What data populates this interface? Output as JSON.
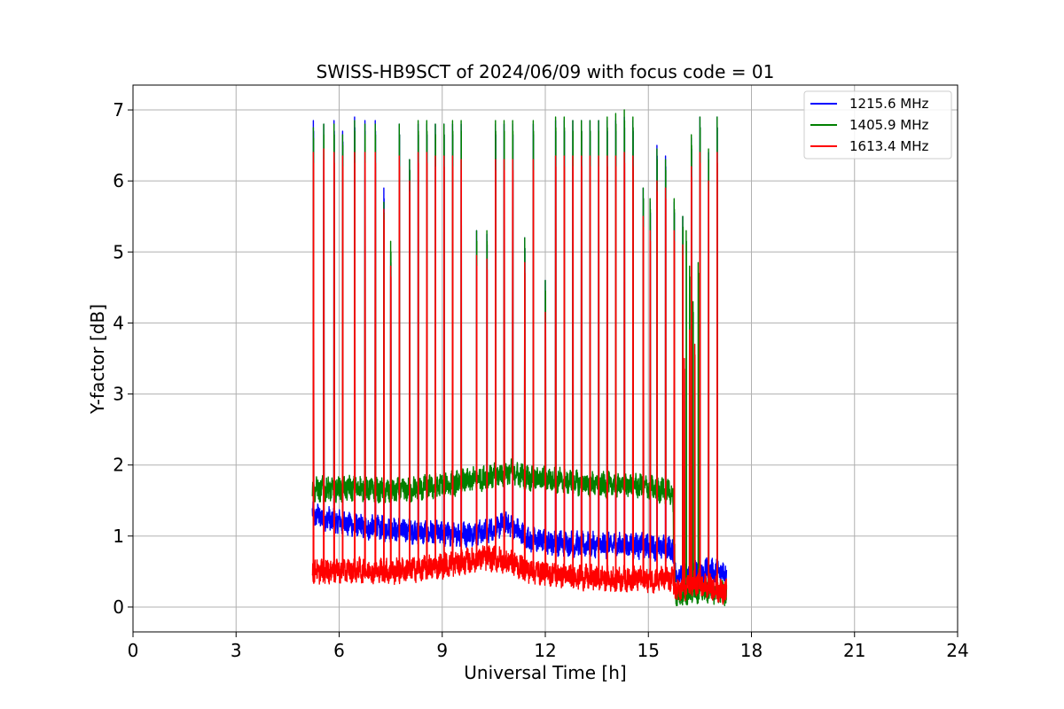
{
  "chart_data": {
    "type": "line",
    "title": "SWISS-HB9SCT of 2024/06/09 with focus code = 01",
    "xlabel": "Universal Time [h]",
    "ylabel": "Y-factor [dB]",
    "xlim": [
      0,
      24
    ],
    "ylim": [
      -0.35,
      7.35
    ],
    "xticks": [
      0,
      3,
      6,
      9,
      12,
      15,
      18,
      21,
      24
    ],
    "yticks": [
      0,
      1,
      2,
      3,
      4,
      5,
      6,
      7
    ],
    "grid": true,
    "legend_position": "top-right",
    "time_range": [
      5.22,
      17.28
    ],
    "noise_amplitude": 0.15,
    "series": [
      {
        "name": "1215.6 MHz",
        "color": "#0000ff",
        "baseline": [
          [
            5.22,
            1.3
          ],
          [
            6.0,
            1.2
          ],
          [
            6.8,
            1.12
          ],
          [
            7.5,
            1.1
          ],
          [
            8.5,
            1.05
          ],
          [
            9.5,
            1.02
          ],
          [
            10.2,
            1.05
          ],
          [
            10.9,
            1.18
          ],
          [
            11.5,
            0.95
          ],
          [
            12.5,
            0.9
          ],
          [
            13.5,
            0.87
          ],
          [
            14.5,
            0.87
          ],
          [
            15.7,
            0.82
          ],
          [
            15.8,
            0.45
          ],
          [
            16.6,
            0.5
          ],
          [
            17.28,
            0.5
          ]
        ],
        "peaks": [
          [
            5.25,
            6.85
          ],
          [
            5.55,
            6.8
          ],
          [
            5.85,
            6.85
          ],
          [
            6.1,
            6.7
          ],
          [
            6.45,
            6.9
          ],
          [
            6.75,
            6.85
          ],
          [
            7.05,
            6.85
          ],
          [
            7.3,
            5.9
          ],
          [
            7.5,
            5.0
          ],
          [
            7.75,
            6.8
          ],
          [
            8.05,
            6.3
          ],
          [
            8.3,
            6.8
          ],
          [
            8.55,
            6.8
          ],
          [
            8.8,
            6.8
          ],
          [
            9.05,
            6.8
          ],
          [
            9.3,
            6.8
          ],
          [
            9.55,
            6.8
          ],
          [
            10.0,
            5.3
          ],
          [
            10.3,
            5.25
          ],
          [
            10.55,
            6.8
          ],
          [
            10.8,
            6.8
          ],
          [
            11.05,
            6.8
          ],
          [
            11.4,
            5.2
          ],
          [
            11.65,
            6.8
          ],
          [
            12.0,
            4.6
          ],
          [
            12.3,
            6.85
          ],
          [
            12.55,
            6.85
          ],
          [
            12.8,
            6.85
          ],
          [
            13.05,
            6.85
          ],
          [
            13.3,
            6.85
          ],
          [
            13.55,
            6.85
          ],
          [
            13.8,
            6.85
          ],
          [
            14.05,
            6.85
          ],
          [
            14.3,
            6.9
          ],
          [
            14.55,
            6.85
          ],
          [
            14.85,
            5.9
          ],
          [
            15.05,
            5.7
          ],
          [
            15.25,
            6.5
          ],
          [
            15.5,
            6.35
          ],
          [
            15.75,
            5.7
          ],
          [
            16.0,
            5.5
          ],
          [
            16.25,
            6.6
          ],
          [
            16.5,
            6.9
          ],
          [
            16.75,
            6.4
          ],
          [
            17.0,
            6.9
          ]
        ]
      },
      {
        "name": "1405.9 MHz",
        "color": "#008000",
        "baseline": [
          [
            5.22,
            1.65
          ],
          [
            6.5,
            1.68
          ],
          [
            7.5,
            1.62
          ],
          [
            8.5,
            1.68
          ],
          [
            9.5,
            1.75
          ],
          [
            10.2,
            1.82
          ],
          [
            11.0,
            1.9
          ],
          [
            11.5,
            1.82
          ],
          [
            12.5,
            1.78
          ],
          [
            13.5,
            1.72
          ],
          [
            14.5,
            1.72
          ],
          [
            15.7,
            1.62
          ],
          [
            15.8,
            0.15
          ],
          [
            16.5,
            0.25
          ],
          [
            17.28,
            0.2
          ]
        ],
        "peaks": [
          [
            5.25,
            6.75
          ],
          [
            5.55,
            6.8
          ],
          [
            5.85,
            6.8
          ],
          [
            6.1,
            6.65
          ],
          [
            6.45,
            6.85
          ],
          [
            6.75,
            6.8
          ],
          [
            7.05,
            6.8
          ],
          [
            7.3,
            5.7
          ],
          [
            7.5,
            5.15
          ],
          [
            7.75,
            6.8
          ],
          [
            8.05,
            6.3
          ],
          [
            8.3,
            6.85
          ],
          [
            8.55,
            6.85
          ],
          [
            8.8,
            6.8
          ],
          [
            9.05,
            6.8
          ],
          [
            9.3,
            6.85
          ],
          [
            9.55,
            6.85
          ],
          [
            10.0,
            5.3
          ],
          [
            10.3,
            5.3
          ],
          [
            10.55,
            6.85
          ],
          [
            10.8,
            6.85
          ],
          [
            11.05,
            6.85
          ],
          [
            11.4,
            5.2
          ],
          [
            11.65,
            6.85
          ],
          [
            12.0,
            4.6
          ],
          [
            12.3,
            6.9
          ],
          [
            12.55,
            6.9
          ],
          [
            12.8,
            6.85
          ],
          [
            13.05,
            6.85
          ],
          [
            13.3,
            6.85
          ],
          [
            13.55,
            6.85
          ],
          [
            13.8,
            6.9
          ],
          [
            14.05,
            6.95
          ],
          [
            14.3,
            7.0
          ],
          [
            14.55,
            6.9
          ],
          [
            14.85,
            5.9
          ],
          [
            15.05,
            5.75
          ],
          [
            15.25,
            6.45
          ],
          [
            15.5,
            6.3
          ],
          [
            15.75,
            5.75
          ],
          [
            16.0,
            5.5
          ],
          [
            16.25,
            6.65
          ],
          [
            16.5,
            6.9
          ],
          [
            16.75,
            6.45
          ],
          [
            17.0,
            6.9
          ]
        ],
        "late_bursts": [
          [
            16.0,
            4.5
          ],
          [
            16.1,
            5.3
          ],
          [
            16.2,
            4.8
          ],
          [
            16.3,
            4.3
          ],
          [
            16.45,
            4.85
          ]
        ]
      },
      {
        "name": "1613.4 MHz",
        "color": "#ff0000",
        "baseline": [
          [
            5.22,
            0.5
          ],
          [
            6.5,
            0.52
          ],
          [
            7.5,
            0.5
          ],
          [
            8.5,
            0.55
          ],
          [
            9.5,
            0.62
          ],
          [
            10.2,
            0.7
          ],
          [
            10.9,
            0.65
          ],
          [
            11.5,
            0.52
          ],
          [
            12.5,
            0.45
          ],
          [
            13.5,
            0.4
          ],
          [
            14.5,
            0.4
          ],
          [
            15.7,
            0.38
          ],
          [
            15.8,
            0.22
          ],
          [
            16.5,
            0.35
          ],
          [
            17.28,
            0.2
          ]
        ],
        "peaks": [
          [
            5.25,
            6.4
          ],
          [
            5.55,
            6.45
          ],
          [
            5.85,
            6.4
          ],
          [
            6.1,
            6.35
          ],
          [
            6.45,
            6.4
          ],
          [
            6.75,
            6.4
          ],
          [
            7.05,
            6.4
          ],
          [
            7.3,
            5.6
          ],
          [
            7.5,
            4.8
          ],
          [
            7.75,
            6.35
          ],
          [
            8.05,
            6.0
          ],
          [
            8.3,
            6.4
          ],
          [
            8.55,
            6.4
          ],
          [
            8.8,
            6.35
          ],
          [
            9.05,
            6.35
          ],
          [
            9.3,
            6.35
          ],
          [
            9.55,
            6.3
          ],
          [
            10.0,
            4.95
          ],
          [
            10.3,
            4.9
          ],
          [
            10.55,
            6.3
          ],
          [
            10.8,
            6.3
          ],
          [
            11.05,
            6.3
          ],
          [
            11.4,
            4.85
          ],
          [
            11.65,
            6.3
          ],
          [
            12.0,
            4.15
          ],
          [
            12.3,
            6.35
          ],
          [
            12.55,
            6.35
          ],
          [
            12.8,
            6.35
          ],
          [
            13.05,
            6.35
          ],
          [
            13.3,
            6.35
          ],
          [
            13.55,
            6.35
          ],
          [
            13.8,
            6.35
          ],
          [
            14.05,
            6.35
          ],
          [
            14.3,
            6.4
          ],
          [
            14.55,
            6.35
          ],
          [
            14.85,
            5.5
          ],
          [
            15.05,
            5.3
          ],
          [
            15.25,
            6.0
          ],
          [
            15.5,
            5.9
          ],
          [
            15.75,
            5.3
          ],
          [
            16.0,
            5.1
          ],
          [
            16.25,
            6.2
          ],
          [
            16.5,
            6.4
          ],
          [
            16.75,
            6.0
          ],
          [
            17.0,
            6.4
          ]
        ],
        "late_bursts": [
          [
            16.05,
            3.5
          ],
          [
            16.2,
            3.9
          ],
          [
            16.35,
            3.7
          ]
        ]
      }
    ]
  }
}
